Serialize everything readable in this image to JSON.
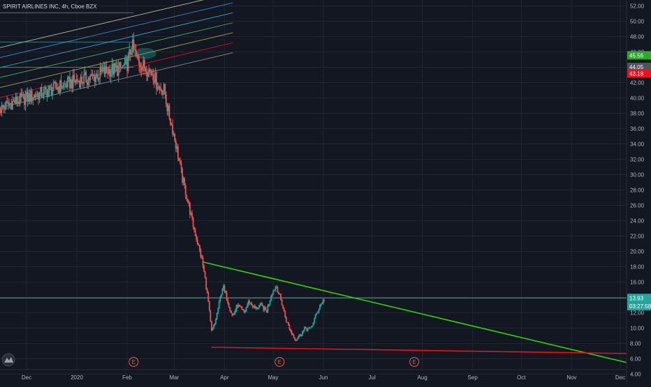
{
  "header": {
    "title": "SPIRIT AIRLINES INC, 4h, Cboe BZX"
  },
  "colors": {
    "background": "#131722",
    "grid": "#1f2433",
    "axis_text": "#b2b5be",
    "candle_up": "#26a69a",
    "candle_down": "#ef5350",
    "resistance_line": "#33d100",
    "support_line": "#e8121b",
    "horizontal_level": "#4aa3a0",
    "badge_green": "#2ea82e",
    "badge_gray": "#50535e",
    "badge_red": "#e8121b",
    "badge_teal": "#26a69a"
  },
  "chart_data": {
    "type": "candlestick",
    "symbol": "SPIRIT AIRLINES INC",
    "interval": "4h",
    "exchange": "Cboe BZX",
    "ylim": [
      3.5,
      52.5
    ],
    "y_ticks": [
      "52.00",
      "50.00",
      "48.00",
      "46.00",
      "44.00",
      "42.00",
      "40.00",
      "38.00",
      "36.00",
      "34.00",
      "32.00",
      "30.00",
      "28.00",
      "26.00",
      "24.00",
      "22.00",
      "20.00",
      "18.00",
      "16.00",
      "14.00",
      "12.00",
      "10.00",
      "8.00",
      "6.00",
      "4.00"
    ],
    "x_ticks": [
      {
        "label": "Dec",
        "date": "2019-12-01"
      },
      {
        "label": "2020",
        "date": "2020-01-01"
      },
      {
        "label": "Feb",
        "date": "2020-02-01"
      },
      {
        "label": "Mar",
        "date": "2020-03-01"
      },
      {
        "label": "Apr",
        "date": "2020-04-01"
      },
      {
        "label": "May",
        "date": "2020-05-01"
      },
      {
        "label": "Jun",
        "date": "2020-06-01"
      },
      {
        "label": "Jul",
        "date": "2020-07-01"
      },
      {
        "label": "Aug",
        "date": "2020-08-01"
      },
      {
        "label": "Sep",
        "date": "2020-09-01"
      },
      {
        "label": "Oct",
        "date": "2020-10-01"
      },
      {
        "label": "Nov",
        "date": "2020-11-01"
      },
      {
        "label": "Dec",
        "date": "2020-12-01"
      }
    ],
    "price_path": [
      [
        "2019-11-15",
        38.6
      ],
      [
        "2019-11-22",
        39.4
      ],
      [
        "2019-12-01",
        40.0
      ],
      [
        "2019-12-10",
        40.6
      ],
      [
        "2019-12-20",
        41.4
      ],
      [
        "2019-12-31",
        42.2
      ],
      [
        "2020-01-10",
        42.6
      ],
      [
        "2020-01-20",
        43.6
      ],
      [
        "2020-01-28",
        43.8
      ],
      [
        "2020-02-01",
        44.4
      ],
      [
        "2020-02-04",
        46.8
      ],
      [
        "2020-02-07",
        45.0
      ],
      [
        "2020-02-12",
        44.0
      ],
      [
        "2020-02-17",
        43.2
      ],
      [
        "2020-02-20",
        41.5
      ],
      [
        "2020-02-24",
        41.0
      ],
      [
        "2020-02-26",
        38.5
      ],
      [
        "2020-02-29",
        36.0
      ],
      [
        "2020-03-03",
        33.0
      ],
      [
        "2020-03-06",
        29.5
      ],
      [
        "2020-03-09",
        27.0
      ],
      [
        "2020-03-12",
        24.0
      ],
      [
        "2020-03-15",
        21.5
      ],
      [
        "2020-03-18",
        19.0
      ],
      [
        "2020-03-20",
        16.5
      ],
      [
        "2020-03-22",
        13.5
      ],
      [
        "2020-03-24",
        9.5
      ],
      [
        "2020-03-26",
        10.5
      ],
      [
        "2020-03-28",
        12.5
      ],
      [
        "2020-03-31",
        15.5
      ],
      [
        "2020-04-03",
        13.5
      ],
      [
        "2020-04-06",
        11.5
      ],
      [
        "2020-04-09",
        13.0
      ],
      [
        "2020-04-13",
        12.0
      ],
      [
        "2020-04-16",
        13.5
      ],
      [
        "2020-04-20",
        12.5
      ],
      [
        "2020-04-23",
        13.0
      ],
      [
        "2020-04-27",
        12.2
      ],
      [
        "2020-04-30",
        14.5
      ],
      [
        "2020-05-03",
        15.5
      ],
      [
        "2020-05-06",
        13.5
      ],
      [
        "2020-05-09",
        11.0
      ],
      [
        "2020-05-12",
        9.5
      ],
      [
        "2020-05-15",
        8.5
      ],
      [
        "2020-05-18",
        9.2
      ],
      [
        "2020-05-21",
        10.0
      ],
      [
        "2020-05-24",
        9.8
      ],
      [
        "2020-05-27",
        11.5
      ],
      [
        "2020-05-30",
        13.0
      ],
      [
        "2020-06-02",
        13.9
      ]
    ],
    "earnings_markers": [
      {
        "label": "E",
        "date": "2020-02-05"
      },
      {
        "label": "E",
        "date": "2020-05-05"
      },
      {
        "label": "E",
        "date": "2020-07-27"
      }
    ],
    "trendlines": {
      "resistance": {
        "x": [
          "2020-03-19",
          "2020-12-31"
        ],
        "y": [
          18.6,
          4.2
        ]
      },
      "support": {
        "x": [
          "2020-03-24",
          "2020-12-31"
        ],
        "y": [
          7.5,
          6.6
        ]
      },
      "horizontal": {
        "y": 13.93
      }
    },
    "pitchfork": {
      "start_date": "2019-09-20",
      "end_date": "2020-02-08",
      "start_prices": [
        36.0,
        37.3,
        38.6,
        39.9,
        41.2,
        42.5,
        43.8
      ],
      "end_prices": [
        43.4,
        44.7,
        46.0,
        47.3,
        48.6,
        49.9,
        51.2
      ]
    },
    "price_labels": [
      {
        "label": "45.56",
        "value": 45.56,
        "role": "green"
      },
      {
        "label": "44.05",
        "value": 44.05,
        "role": "gray"
      },
      {
        "label": "43.18",
        "value": 43.18,
        "role": "red"
      },
      {
        "label": "13.93",
        "value": 13.93,
        "role": "teal"
      },
      {
        "label": "03:27:58",
        "value": 12.85,
        "role": "teal"
      }
    ]
  }
}
